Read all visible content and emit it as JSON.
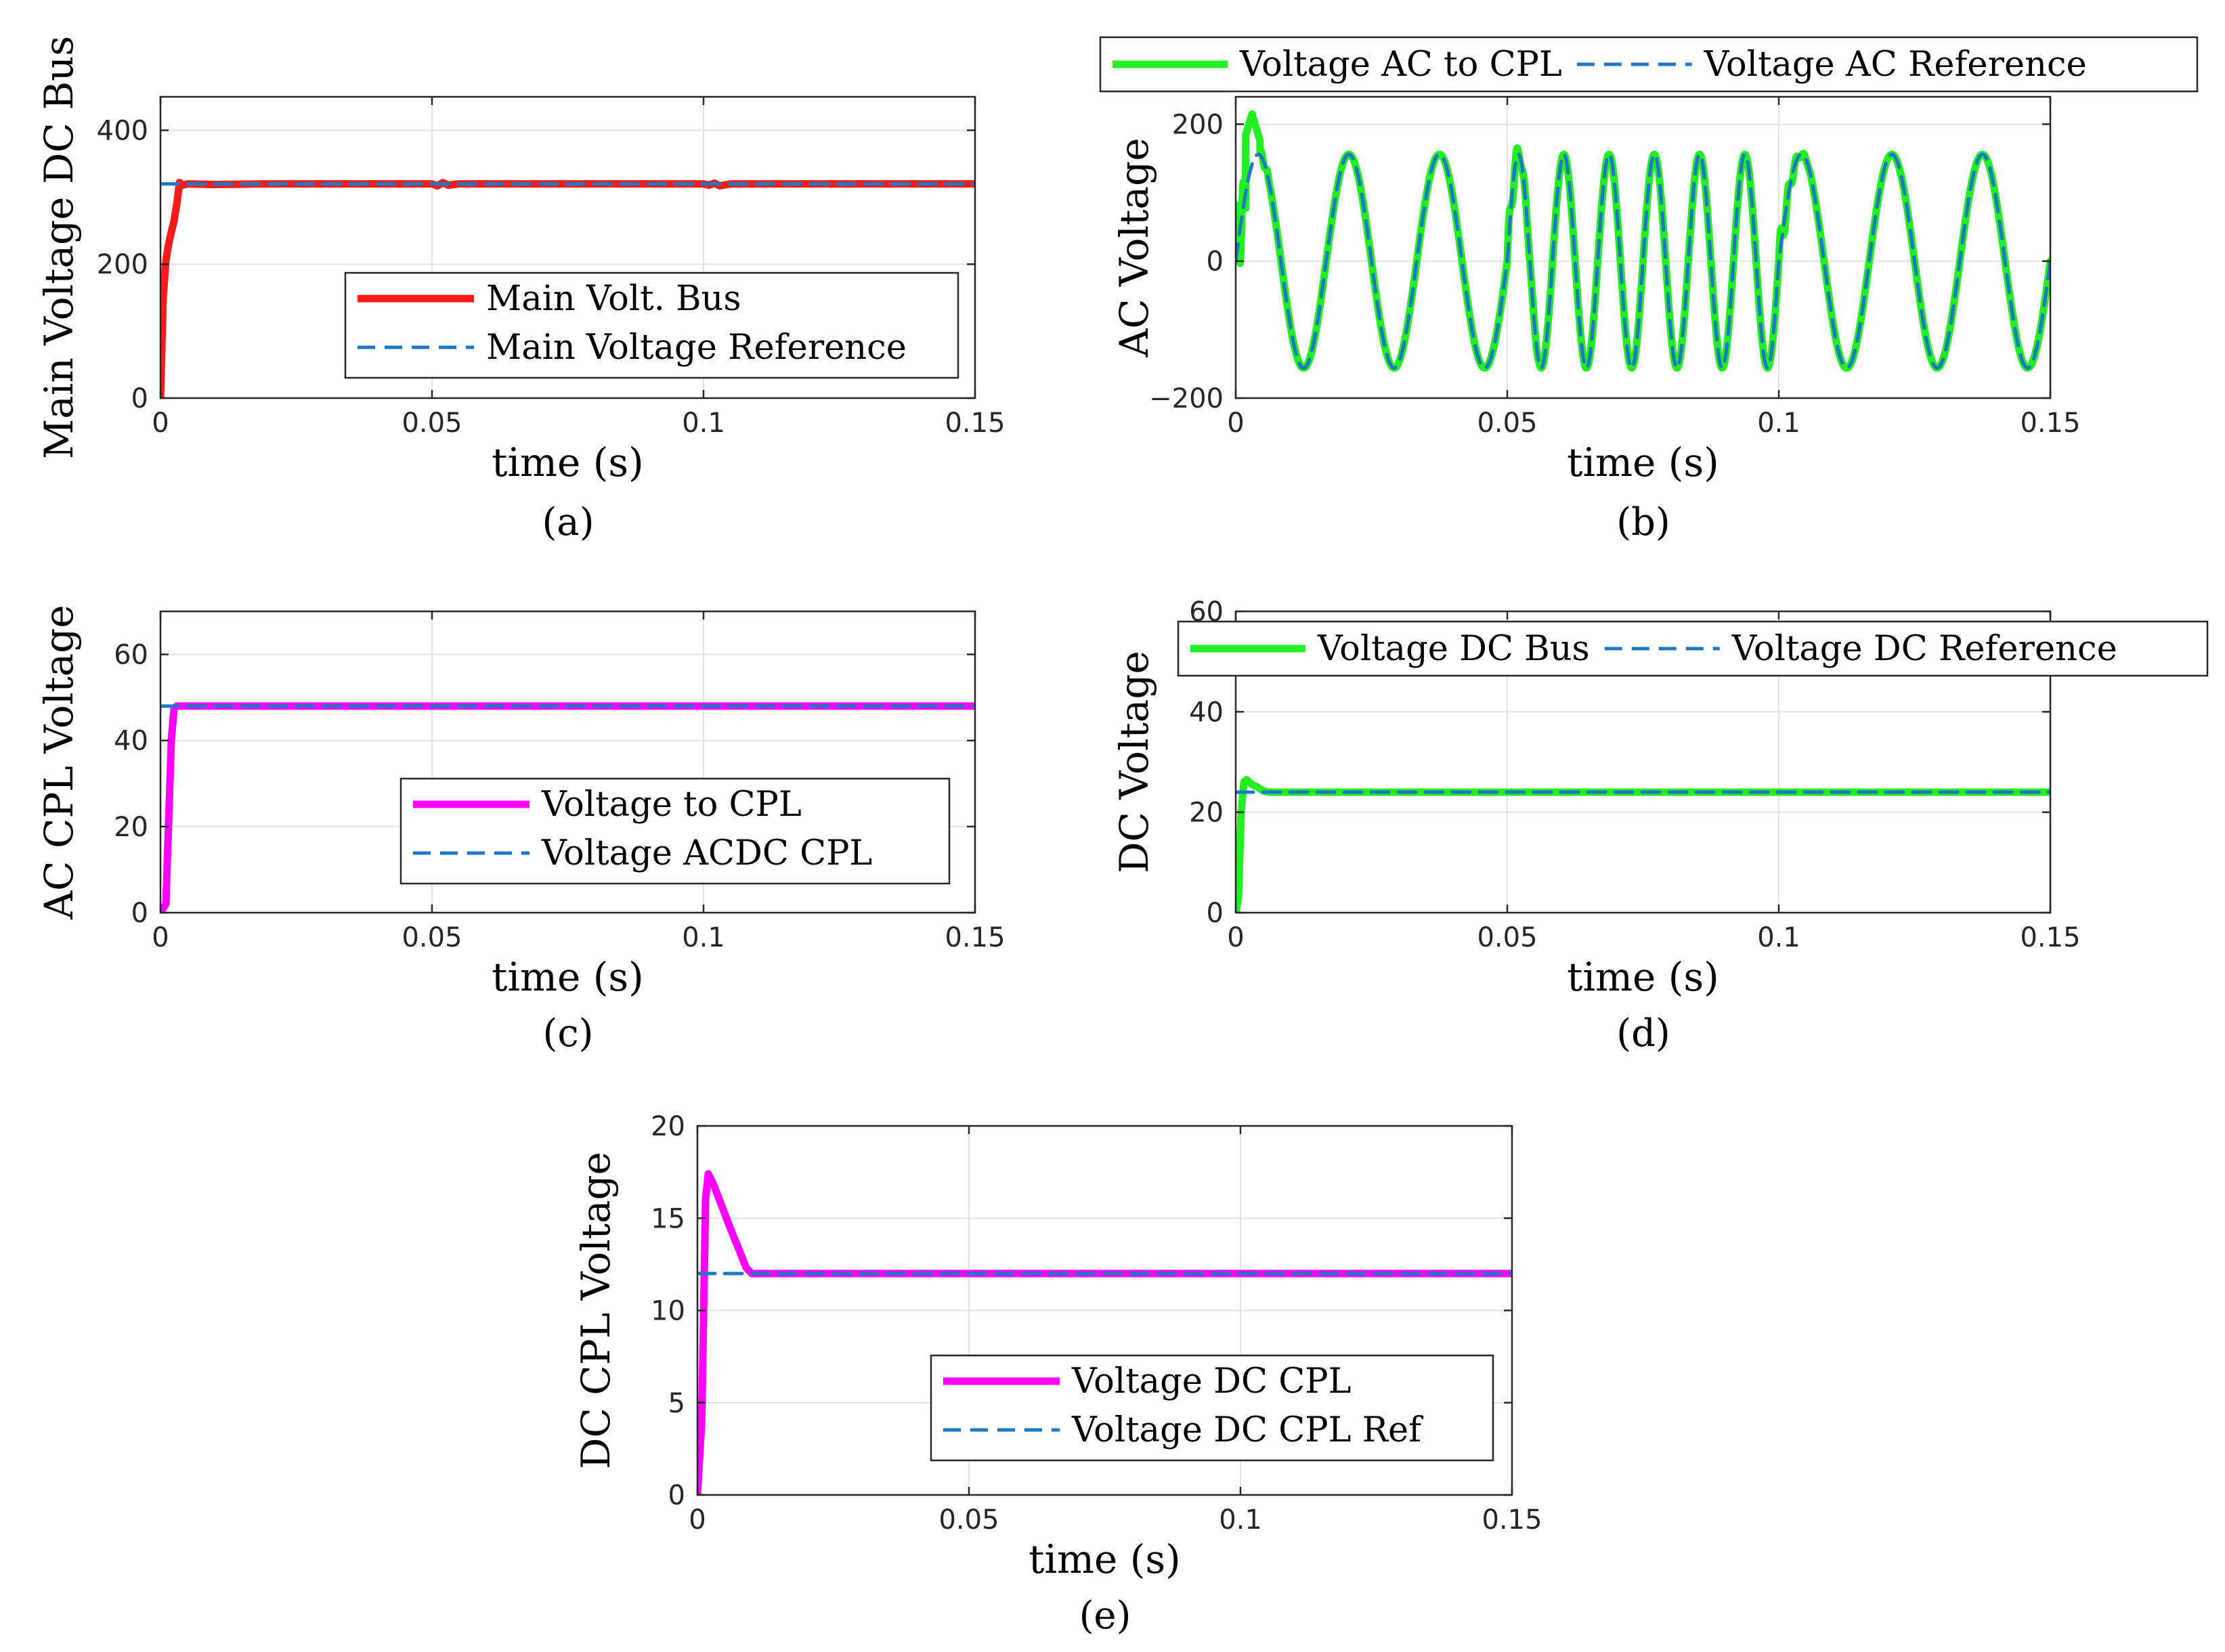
{
  "colors": {
    "red": "#ff1a1a",
    "green": "#22ee22",
    "magenta": "#ff00ff",
    "ref_blue": "#1f77c4"
  },
  "chart_data": [
    {
      "id": "a",
      "type": "line",
      "panel_label": "(a)",
      "xlabel": "time (s)",
      "ylabel": "Main Voltage DC Bus",
      "xlim": [
        0,
        0.15
      ],
      "ylim": [
        0,
        450
      ],
      "xticks": [
        0,
        0.05,
        0.1,
        0.15
      ],
      "xtick_labels": [
        "0",
        "0.05",
        "0.1",
        "0.15"
      ],
      "yticks": [
        0,
        200,
        400
      ],
      "ytick_labels": [
        "0",
        "200",
        "400"
      ],
      "legend_position": "lower-right",
      "series": [
        {
          "name": "Main Volt. Bus",
          "color": "#ff1a1a",
          "style": "solid",
          "x": [
            0,
            0.0005,
            0.001,
            0.0015,
            0.002,
            0.0025,
            0.003,
            0.0035,
            0.004,
            0.005,
            0.01,
            0.02,
            0.04,
            0.05,
            0.051,
            0.052,
            0.053,
            0.055,
            0.06,
            0.08,
            0.1,
            0.101,
            0.102,
            0.103,
            0.105,
            0.12,
            0.15
          ],
          "y": [
            0,
            150,
            205,
            230,
            248,
            265,
            290,
            322,
            318,
            320,
            319,
            320,
            320,
            320,
            317,
            322,
            318,
            320,
            320,
            320,
            320,
            318,
            321,
            317,
            320,
            320,
            320
          ]
        },
        {
          "name": "Main Voltage Reference",
          "color": "#1f77c4",
          "style": "dashed",
          "x": [
            0,
            0.15
          ],
          "y": [
            320,
            320
          ]
        }
      ]
    },
    {
      "id": "b",
      "type": "line",
      "panel_label": "(b)",
      "xlabel": "time (s)",
      "ylabel": "AC Voltage",
      "xlim": [
        0,
        0.15
      ],
      "ylim": [
        -200,
        240
      ],
      "xticks": [
        0,
        0.05,
        0.1,
        0.15
      ],
      "xtick_labels": [
        "0",
        "0.05",
        "0.1",
        "0.15"
      ],
      "yticks": [
        -200,
        0,
        200
      ],
      "ytick_labels": [
        "−200",
        "0",
        "200"
      ],
      "legend_position": "top-outside",
      "amplitude": 156,
      "frequency_segments": [
        {
          "t_start": 0,
          "t_end": 0.05,
          "freq_hz": 60
        },
        {
          "t_start": 0.05,
          "t_end": 0.1,
          "freq_hz": 120
        },
        {
          "t_start": 0.1,
          "t_end": 0.15,
          "freq_hz": 60
        }
      ],
      "series": [
        {
          "name": "Voltage AC to CPL",
          "color": "#22ee22",
          "style": "solid"
        },
        {
          "name": "Voltage AC Reference",
          "color": "#1f77c4",
          "style": "dashed"
        }
      ]
    },
    {
      "id": "c",
      "type": "line",
      "panel_label": "(c)",
      "xlabel": "time (s)",
      "ylabel": "AC CPL Voltage",
      "xlim": [
        0,
        0.15
      ],
      "ylim": [
        0,
        70
      ],
      "xticks": [
        0,
        0.05,
        0.1,
        0.15
      ],
      "xtick_labels": [
        "0",
        "0.05",
        "0.1",
        "0.15"
      ],
      "yticks": [
        0,
        20,
        40,
        60
      ],
      "ytick_labels": [
        "0",
        "20",
        "40",
        "60"
      ],
      "legend_position": "lower-right",
      "series": [
        {
          "name": "Voltage to CPL",
          "color": "#ff00ff",
          "style": "solid",
          "x": [
            0,
            0.001,
            0.002,
            0.0025,
            0.003,
            0.15
          ],
          "y": [
            0,
            2,
            40,
            47.5,
            48,
            48
          ]
        },
        {
          "name": "Voltage ACDC CPL",
          "color": "#1f77c4",
          "style": "dashed",
          "x": [
            0,
            0.15
          ],
          "y": [
            48,
            48
          ]
        }
      ]
    },
    {
      "id": "d",
      "type": "line",
      "panel_label": "(d)",
      "xlabel": "time (s)",
      "ylabel": "DC Voltage",
      "xlim": [
        0,
        0.15
      ],
      "ylim": [
        0,
        60
      ],
      "xticks": [
        0,
        0.05,
        0.1,
        0.15
      ],
      "xtick_labels": [
        "0",
        "0.05",
        "0.1",
        "0.15"
      ],
      "yticks": [
        0,
        20,
        40,
        60
      ],
      "ytick_labels": [
        "0",
        "20",
        "40",
        "60"
      ],
      "legend_position": "top",
      "series": [
        {
          "name": "Voltage DC Bus",
          "color": "#22ee22",
          "style": "solid",
          "x": [
            0,
            0.0005,
            0.001,
            0.0015,
            0.002,
            0.003,
            0.004,
            0.005,
            0.006,
            0.15
          ],
          "y": [
            0,
            3,
            20,
            26,
            26.5,
            25.5,
            25,
            24.3,
            24,
            24
          ]
        },
        {
          "name": "Voltage DC Reference",
          "color": "#1f77c4",
          "style": "dashed",
          "x": [
            0,
            0.15
          ],
          "y": [
            24,
            24
          ]
        }
      ]
    },
    {
      "id": "e",
      "type": "line",
      "panel_label": "(e)",
      "xlabel": "time (s)",
      "ylabel": "DC CPL Voltage",
      "xlim": [
        0,
        0.15
      ],
      "ylim": [
        0,
        20
      ],
      "xticks": [
        0,
        0.05,
        0.1,
        0.15
      ],
      "xtick_labels": [
        "0",
        "0.05",
        "0.1",
        "0.15"
      ],
      "yticks": [
        0,
        5,
        10,
        15,
        20
      ],
      "ytick_labels": [
        "0",
        "5",
        "10",
        "15",
        "20"
      ],
      "legend_position": "lower-right",
      "series": [
        {
          "name": "Voltage DC CPL",
          "color": "#ff00ff",
          "style": "solid",
          "x": [
            0,
            0.0008,
            0.0015,
            0.002,
            0.003,
            0.006,
            0.009,
            0.01,
            0.15
          ],
          "y": [
            0,
            4,
            16,
            17.4,
            16.8,
            14.5,
            12.3,
            12,
            12
          ]
        },
        {
          "name": "Voltage DC CPL Ref",
          "color": "#1f77c4",
          "style": "dashed",
          "x": [
            0,
            0.15
          ],
          "y": [
            12,
            12
          ]
        }
      ]
    }
  ]
}
